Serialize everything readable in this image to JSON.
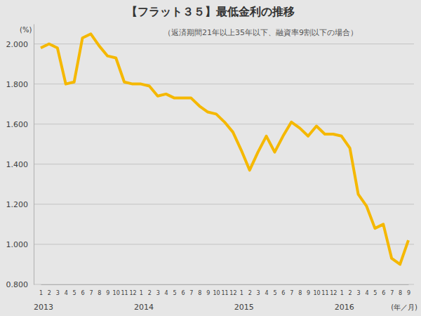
{
  "chart_data": {
    "type": "line",
    "title": "【フラット３５】最低金利の推移",
    "subtitle": "（返済期間21年以上35年以下、融資率9割以下の場合）",
    "y_label": "(%)",
    "x_label": "(年／月)",
    "years": [
      "2013",
      "2014",
      "2015",
      "2016"
    ],
    "categories": [
      "1",
      "2",
      "3",
      "4",
      "5",
      "6",
      "7",
      "8",
      "9",
      "10",
      "11",
      "12",
      "1",
      "2",
      "3",
      "4",
      "5",
      "6",
      "7",
      "8",
      "9",
      "10",
      "11",
      "12",
      "1",
      "2",
      "3",
      "4",
      "5",
      "6",
      "7",
      "8",
      "9",
      "10",
      "11",
      "12",
      "1",
      "2",
      "3",
      "4",
      "5",
      "6",
      "7",
      "8",
      "9"
    ],
    "values": [
      1.98,
      2.0,
      1.98,
      1.8,
      1.81,
      2.03,
      2.05,
      1.99,
      1.94,
      1.93,
      1.81,
      1.8,
      1.8,
      1.79,
      1.74,
      1.75,
      1.73,
      1.73,
      1.73,
      1.69,
      1.66,
      1.65,
      1.61,
      1.56,
      1.47,
      1.37,
      1.46,
      1.54,
      1.46,
      1.54,
      1.61,
      1.58,
      1.54,
      1.59,
      1.55,
      1.55,
      1.54,
      1.48,
      1.25,
      1.19,
      1.08,
      1.1,
      0.93,
      0.9,
      1.02
    ],
    "color": "#f5b800",
    "ylim": [
      0.8,
      2.1
    ],
    "yticks": [
      {
        "value": 0.8,
        "label": "0.800"
      },
      {
        "value": 1.0,
        "label": "1.000"
      },
      {
        "value": 1.2,
        "label": "1.200"
      },
      {
        "value": 1.4,
        "label": "1.400"
      },
      {
        "value": 1.6,
        "label": "1.600"
      },
      {
        "value": 1.8,
        "label": "1.800"
      },
      {
        "value": 2.0,
        "label": "2.000"
      }
    ],
    "grid": true
  }
}
